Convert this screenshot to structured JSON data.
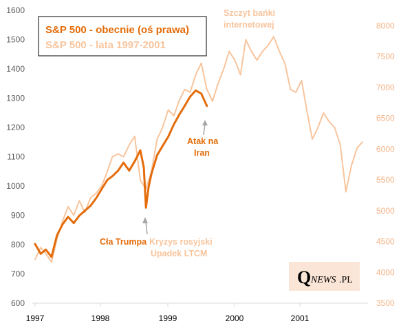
{
  "chart_data": {
    "type": "line",
    "title": "",
    "x_ticks": [
      "1997",
      "1998",
      "1999",
      "2000",
      "2001"
    ],
    "left_axis": {
      "ticks": [
        600,
        700,
        800,
        900,
        1000,
        1100,
        1200,
        1300,
        1400,
        1500,
        1600
      ],
      "ylim": [
        600,
        1600
      ]
    },
    "right_axis": {
      "ticks": [
        3500,
        4000,
        4500,
        5000,
        5500,
        6000,
        6500,
        7000,
        7500,
        8000
      ],
      "ylim": [
        3500,
        8250
      ]
    },
    "grid": false,
    "legend_position": "top-left",
    "series": [
      {
        "name": "S&P 500 - obecnie (oś prawa)",
        "color": "#E46C0A",
        "axis": "right",
        "points": [
          [
            "1997-01",
            4460
          ],
          [
            "1997-02",
            4300
          ],
          [
            "1997-03",
            4370
          ],
          [
            "1997-04",
            4250
          ],
          [
            "1997-05",
            4600
          ],
          [
            "1997-06",
            4780
          ],
          [
            "1997-07",
            4900
          ],
          [
            "1997-08",
            4800
          ],
          [
            "1997-09",
            4920
          ],
          [
            "1997-10",
            5000
          ],
          [
            "1997-11",
            5080
          ],
          [
            "1997-12",
            5200
          ],
          [
            "1998-01",
            5350
          ],
          [
            "1998-02",
            5500
          ],
          [
            "1998-03",
            5560
          ],
          [
            "1998-04",
            5650
          ],
          [
            "1998-05",
            5780
          ],
          [
            "1998-06",
            5650
          ],
          [
            "1998-07",
            5800
          ],
          [
            "1998-08",
            5980
          ],
          [
            "1998-08-20",
            5700
          ],
          [
            "1998-09",
            5050
          ],
          [
            "1998-09-15",
            5380
          ],
          [
            "1998-10",
            5600
          ],
          [
            "1998-11",
            5900
          ],
          [
            "1998-12",
            6050
          ],
          [
            "1999-01",
            6200
          ],
          [
            "1999-02",
            6400
          ],
          [
            "1999-03",
            6550
          ],
          [
            "1999-04",
            6700
          ],
          [
            "1999-05",
            6850
          ],
          [
            "1999-06",
            6950
          ],
          [
            "1999-07",
            6900
          ],
          [
            "1999-08",
            6700
          ]
        ]
      },
      {
        "name": "S&P 500 - lata 1997-2001",
        "color": "#F8C49C",
        "axis": "left",
        "points": [
          [
            "1997-01",
            750
          ],
          [
            "1997-02",
            790
          ],
          [
            "1997-03",
            770
          ],
          [
            "1997-04",
            740
          ],
          [
            "1997-05",
            820
          ],
          [
            "1997-06",
            880
          ],
          [
            "1997-07",
            930
          ],
          [
            "1997-08",
            900
          ],
          [
            "1997-09",
            950
          ],
          [
            "1997-10",
            910
          ],
          [
            "1997-11",
            960
          ],
          [
            "1997-12",
            975
          ],
          [
            "1998-01",
            1000
          ],
          [
            "1998-02",
            1050
          ],
          [
            "1998-03",
            1100
          ],
          [
            "1998-04",
            1110
          ],
          [
            "1998-05",
            1100
          ],
          [
            "1998-06",
            1140
          ],
          [
            "1998-07",
            1170
          ],
          [
            "1998-08",
            1020
          ],
          [
            "1998-09",
            990
          ],
          [
            "1998-10",
            1050
          ],
          [
            "1998-11",
            1160
          ],
          [
            "1998-12",
            1200
          ],
          [
            "1999-01",
            1260
          ],
          [
            "1999-02",
            1240
          ],
          [
            "1999-03",
            1290
          ],
          [
            "1999-04",
            1330
          ],
          [
            "1999-05",
            1320
          ],
          [
            "1999-06",
            1380
          ],
          [
            "1999-07",
            1420
          ],
          [
            "1999-08",
            1330
          ],
          [
            "1999-09",
            1290
          ],
          [
            "1999-10",
            1350
          ],
          [
            "1999-11",
            1400
          ],
          [
            "1999-12",
            1460
          ],
          [
            "2000-01",
            1430
          ],
          [
            "2000-02",
            1380
          ],
          [
            "2000-03",
            1500
          ],
          [
            "2000-04",
            1460
          ],
          [
            "2000-05",
            1430
          ],
          [
            "2000-06",
            1460
          ],
          [
            "2000-07",
            1480
          ],
          [
            "2000-08",
            1510
          ],
          [
            "2000-09",
            1460
          ],
          [
            "2000-10",
            1420
          ],
          [
            "2000-11",
            1330
          ],
          [
            "2000-12",
            1320
          ],
          [
            "2001-01",
            1360
          ],
          [
            "2001-02",
            1250
          ],
          [
            "2001-03",
            1160
          ],
          [
            "2001-04",
            1200
          ],
          [
            "2001-05",
            1250
          ],
          [
            "2001-06",
            1220
          ],
          [
            "2001-07",
            1200
          ],
          [
            "2001-08",
            1140
          ],
          [
            "2001-09",
            980
          ],
          [
            "2001-10",
            1070
          ],
          [
            "2001-11",
            1130
          ],
          [
            "2001-12",
            1150
          ]
        ]
      }
    ],
    "annotations": [
      {
        "text": "Szczyt bańki\ninternetowej",
        "color": "#F8C49C"
      },
      {
        "text": "Atak na\nIran",
        "color": "#E46C0A"
      },
      {
        "text": "Cła Trumpa",
        "color": "#E46C0A"
      },
      {
        "text": "Kryzys rosyjski\nUpadek LTCM",
        "color": "#F8C49C"
      }
    ]
  },
  "legend": {
    "current": "S&P 500 - obecnie (oś prawa)",
    "historic": "S&P 500 - lata 1997-2001"
  },
  "labels": {
    "peak_line1": "Szczyt bańki",
    "peak_line2": "internetowej",
    "iran_line1": "Atak na",
    "iran_line2": "Iran",
    "tariffs": "Cła Trumpa",
    "crisis_line1": "Kryzys rosyjski",
    "crisis_line2": "Upadek LTCM"
  },
  "logo": {
    "q": "Q",
    "news": "NEWS",
    "pl": ".PL"
  },
  "colors": {
    "current": "#E46C0A",
    "historic": "#F8C49C",
    "axis": "#D9D9D9",
    "left_ticks": "#595959",
    "right_ticks": "#F4B183",
    "logo_bg": "#FBE5D6",
    "arrow": "#A6A6A6"
  }
}
